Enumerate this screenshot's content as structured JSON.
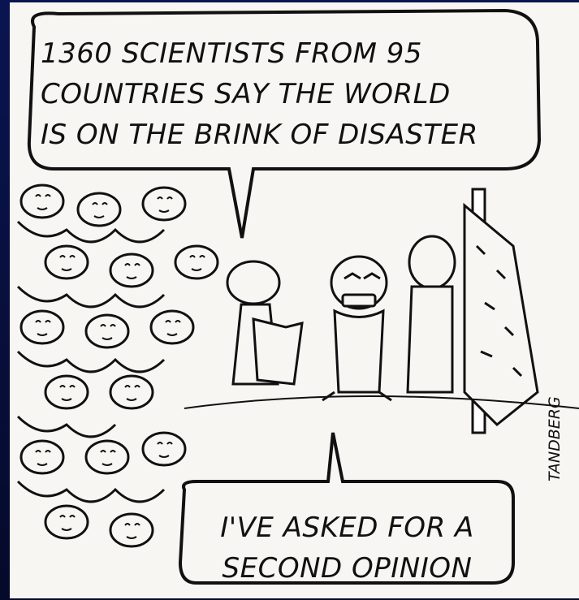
{
  "cartoon": {
    "top_caption": {
      "line1": "1360 SCIENTISTS FROM 95",
      "line2": "COUNTRIES SAY THE WORLD",
      "line3": "IS ON THE BRINK OF DISASTER"
    },
    "bottom_caption": {
      "line1": "I'VE ASKED FOR A",
      "line2": "SECOND OPINION"
    },
    "signature": "TANDBERG"
  },
  "colors": {
    "frame_background": "#08103f",
    "panel": "#f7f6f2",
    "ink": "#111111"
  }
}
